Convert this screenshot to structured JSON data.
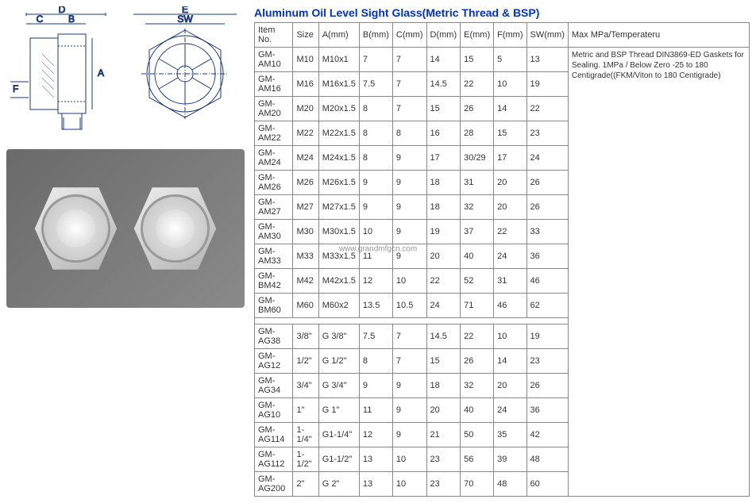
{
  "title": "Aluminum Oil Level Sight Glass(Metric Thread & BSP)",
  "watermark": "www.grandmfgcn.com",
  "drawing": {
    "labels": {
      "D": "D",
      "C": "C",
      "B": "B",
      "A": "A",
      "F": "F",
      "E": "E",
      "SW": "SW"
    }
  },
  "headers": {
    "item": "Item No.",
    "size": "Size",
    "a": "A(mm)",
    "b": "B(mm)",
    "c": "C(mm)",
    "d": "D(mm)",
    "e": "E(mm)",
    "f": "F(mm)",
    "sw": "SW(mm)",
    "notes": "Max MPa/Temperateru"
  },
  "notes": "Metric and BSP Thread DIN3869-ED Gaskets for Sealing. 1MPa / Below Zero -25 to 180 Centigrade((FKM/Viton to 180 Centigrade)",
  "rows1": [
    {
      "item": "GM-AM10",
      "size": "M10",
      "a": "M10x1",
      "b": "7",
      "c": "7",
      "d": "14",
      "e": "15",
      "f": "5",
      "sw": "13"
    },
    {
      "item": "GM-AM16",
      "size": "M16",
      "a": "M16x1.5",
      "b": "7.5",
      "c": "7",
      "d": "14.5",
      "e": "22",
      "f": "10",
      "sw": "19"
    },
    {
      "item": "GM-AM20",
      "size": "M20",
      "a": "M20x1.5",
      "b": "8",
      "c": "7",
      "d": "15",
      "e": "26",
      "f": "14",
      "sw": "22"
    },
    {
      "item": "GM-AM22",
      "size": "M22",
      "a": "M22x1.5",
      "b": "8",
      "c": "8",
      "d": "16",
      "e": "28",
      "f": "15",
      "sw": "23"
    },
    {
      "item": "GM-AM24",
      "size": "M24",
      "a": "M24x1.5",
      "b": "8",
      "c": "9",
      "d": "17",
      "e": "30/29",
      "f": "17",
      "sw": "24"
    },
    {
      "item": "GM-AM26",
      "size": "M26",
      "a": "M26x1.5",
      "b": "9",
      "c": "9",
      "d": "18",
      "e": "31",
      "f": "20",
      "sw": "26"
    },
    {
      "item": "GM-AM27",
      "size": "M27",
      "a": "M27x1.5",
      "b": "9",
      "c": "9",
      "d": "18",
      "e": "32",
      "f": "20",
      "sw": "26"
    },
    {
      "item": "GM-AM30",
      "size": "M30",
      "a": "M30x1.5",
      "b": "10",
      "c": "9",
      "d": "19",
      "e": "37",
      "f": "22",
      "sw": "33"
    },
    {
      "item": "GM-AM33",
      "size": "M33",
      "a": "M33x1.5",
      "b": "11",
      "c": "9",
      "d": "20",
      "e": "40",
      "f": "24",
      "sw": "36"
    },
    {
      "item": "GM-BM42",
      "size": "M42",
      "a": "M42x1.5",
      "b": "12",
      "c": "10",
      "d": "22",
      "e": "52",
      "f": "31",
      "sw": "46"
    },
    {
      "item": "GM-BM60",
      "size": "M60",
      "a": "M60x2",
      "b": "13.5",
      "c": "10.5",
      "d": "24",
      "e": "71",
      "f": "46",
      "sw": "62"
    }
  ],
  "rows2": [
    {
      "item": "GM-AG38",
      "size": "3/8\"",
      "a": "G 3/8\"",
      "b": "7.5",
      "c": "7",
      "d": "14.5",
      "e": "22",
      "f": "10",
      "sw": "19"
    },
    {
      "item": "GM-AG12",
      "size": "1/2\"",
      "a": "G 1/2\"",
      "b": "8",
      "c": "7",
      "d": "15",
      "e": "26",
      "f": "14",
      "sw": "23"
    },
    {
      "item": "GM-AG34",
      "size": "3/4\"",
      "a": "G 3/4\"",
      "b": "9",
      "c": "9",
      "d": "18",
      "e": "32",
      "f": "20",
      "sw": "26"
    },
    {
      "item": "GM-AG10",
      "size": "1\"",
      "a": "G 1\"",
      "b": "11",
      "c": "9",
      "d": "20",
      "e": "40",
      "f": "24",
      "sw": "36"
    },
    {
      "item": "GM-AG114",
      "size": "1-1/4\"",
      "a": "G1-1/4\"",
      "b": "12",
      "c": "9",
      "d": "21",
      "e": "50",
      "f": "35",
      "sw": "42"
    },
    {
      "item": "GM-AG112",
      "size": "1-1/2\"",
      "a": "G1-1/2\"",
      "b": "13",
      "c": "10",
      "d": "23",
      "e": "56",
      "f": "39",
      "sw": "48"
    },
    {
      "item": "GM-AG200",
      "size": "2\"",
      "a": "G 2\"",
      "b": "13",
      "c": "10",
      "d": "23",
      "e": "70",
      "f": "48",
      "sw": "60"
    }
  ],
  "colors": {
    "title": "#0033cc",
    "border": "#888888",
    "drawing": "#1a3a7a"
  }
}
